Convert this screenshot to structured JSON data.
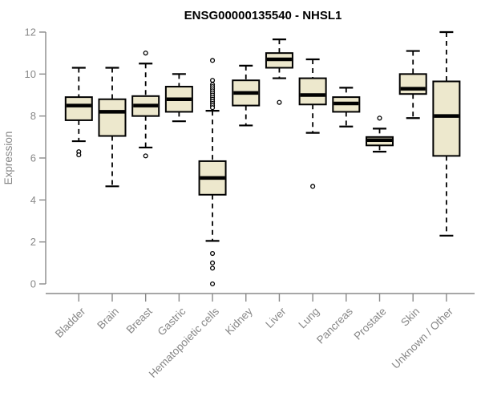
{
  "chart_data": {
    "type": "boxplot",
    "title": "ENSG00000135540 - NHSL1",
    "ylabel": "Expression",
    "xlabel": "",
    "ylim": [
      0,
      12
    ],
    "yticks": [
      0,
      2,
      4,
      6,
      8,
      10,
      12
    ],
    "grid": false,
    "legend": "none",
    "box_fill_color": "#EDE8CD",
    "axis_color": "#8a8a8a",
    "text_color": "#878787",
    "categories": [
      "Bladder",
      "Brain",
      "Breast",
      "Gastric",
      "Hematopoietic cells",
      "Kidney",
      "Liver",
      "Lung",
      "Pancreas",
      "Prostate",
      "Skin",
      "Unknown / Other"
    ],
    "boxes": [
      {
        "label": "Bladder",
        "whisker_low": 6.8,
        "q1": 7.8,
        "median": 8.5,
        "q3": 8.9,
        "whisker_high": 10.3,
        "outliers": [
          6.3,
          6.15
        ]
      },
      {
        "label": "Brain",
        "whisker_low": 4.65,
        "q1": 7.05,
        "median": 8.2,
        "q3": 8.8,
        "whisker_high": 10.3,
        "outliers": []
      },
      {
        "label": "Breast",
        "whisker_low": 6.5,
        "q1": 8.0,
        "median": 8.5,
        "q3": 8.95,
        "whisker_high": 10.5,
        "outliers": [
          11.0,
          6.1
        ]
      },
      {
        "label": "Gastric",
        "whisker_low": 7.75,
        "q1": 8.2,
        "median": 8.8,
        "q3": 9.4,
        "whisker_high": 10.0,
        "outliers": []
      },
      {
        "label": "Hematopoietic cells",
        "whisker_low": 2.05,
        "q1": 4.25,
        "median": 5.05,
        "q3": 5.85,
        "whisker_high": 8.25,
        "outliers": [
          10.65,
          9.7,
          9.5,
          9.4,
          9.3,
          9.2,
          9.1,
          9.0,
          8.9,
          8.8,
          8.7,
          8.6,
          8.5,
          8.4,
          1.45,
          1.0,
          0.75,
          0.0
        ]
      },
      {
        "label": "Kidney",
        "whisker_low": 7.55,
        "q1": 8.5,
        "median": 9.1,
        "q3": 9.7,
        "whisker_high": 10.4,
        "outliers": []
      },
      {
        "label": "Liver",
        "whisker_low": 9.8,
        "q1": 10.3,
        "median": 10.7,
        "q3": 11.0,
        "whisker_high": 11.65,
        "outliers": [
          8.65
        ]
      },
      {
        "label": "Lung",
        "whisker_low": 7.2,
        "q1": 8.55,
        "median": 9.0,
        "q3": 9.8,
        "whisker_high": 10.7,
        "outliers": [
          4.65
        ]
      },
      {
        "label": "Pancreas",
        "whisker_low": 7.5,
        "q1": 8.2,
        "median": 8.6,
        "q3": 8.9,
        "whisker_high": 9.35,
        "outliers": []
      },
      {
        "label": "Prostate",
        "whisker_low": 6.3,
        "q1": 6.6,
        "median": 6.85,
        "q3": 7.0,
        "whisker_high": 7.4,
        "outliers": [
          7.9
        ]
      },
      {
        "label": "Skin",
        "whisker_low": 7.9,
        "q1": 9.05,
        "median": 9.3,
        "q3": 10.0,
        "whisker_high": 11.1,
        "outliers": []
      },
      {
        "label": "Unknown / Other",
        "whisker_low": 2.3,
        "q1": 6.1,
        "median": 8.0,
        "q3": 9.65,
        "whisker_high": 12.0,
        "outliers": []
      }
    ]
  }
}
